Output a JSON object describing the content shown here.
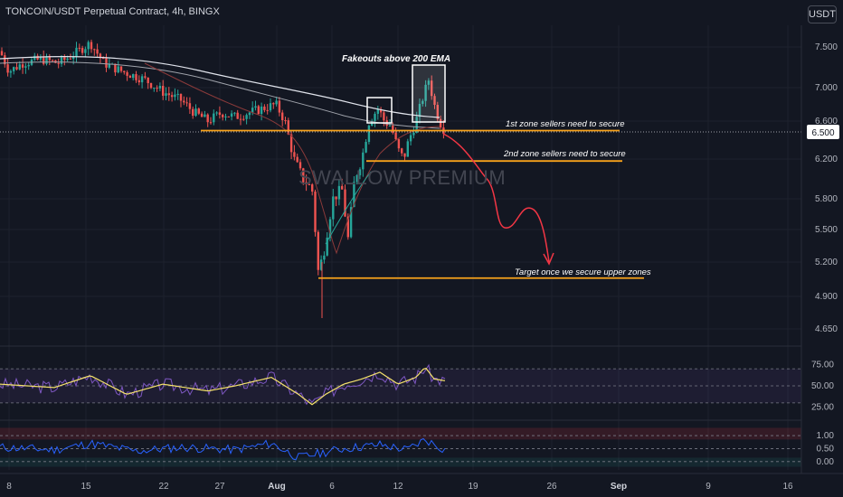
{
  "header": {
    "symbol_title": "TONCOIN/USDT Perpetual Contract, 4h, BINGX"
  },
  "currency_button": {
    "label": "USDT"
  },
  "watermark": "SWALLOW PREMIUM",
  "annotations": {
    "fakeouts": "Fakeouts above 200 EMA",
    "zone1": "1st zone sellers need to secure",
    "zone2": "2nd zone sellers need to secure",
    "target": "Target once we secure upper zones"
  },
  "colors": {
    "background": "#131722",
    "bull_candle": "#26a69a",
    "bear_candle": "#ef5350",
    "zone_line": "#f7a21b",
    "ema_line": "#e0e3eb",
    "rsi_line": "#7e57c2",
    "rsi_ma": "#f5e26b",
    "osc_line": "#2962ff",
    "projection": "#f23645"
  },
  "chart_data": [
    {
      "type": "candlestick",
      "price_axis_ticks": [
        "7.500",
        "7.000",
        "6.600",
        "6.200",
        "5.800",
        "5.500",
        "5.200",
        "4.900",
        "4.650"
      ],
      "current_price_label": "6.500",
      "ylim": [
        4.6,
        7.8
      ],
      "x_axis_ticks": [
        "8",
        "15",
        "22",
        "27",
        "Aug",
        "6",
        "12",
        "19",
        "26",
        "Sep",
        "9",
        "16"
      ],
      "zones": [
        {
          "name": "1st zone",
          "price": 6.5
        },
        {
          "name": "2nd zone",
          "price": 6.18
        },
        {
          "name": "Target",
          "price": 5.06
        }
      ],
      "series": [
        {
          "name": "200 EMA"
        },
        {
          "name": "Price"
        }
      ]
    },
    {
      "type": "line",
      "panel": "RSI",
      "ticks": [
        "75.00",
        "50.00",
        "25.00"
      ],
      "ylim": [
        15,
        85
      ]
    },
    {
      "type": "line",
      "panel": "Oscillator",
      "ticks": [
        "1.00",
        "0.50",
        "0.00"
      ],
      "ylim": [
        -0.25,
        1.35
      ]
    }
  ]
}
